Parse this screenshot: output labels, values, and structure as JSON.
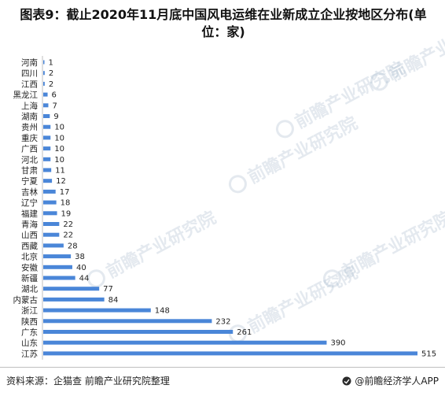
{
  "chart_data": {
    "type": "bar",
    "orientation": "horizontal",
    "title": "图表9：截止2020年11月底中国风电运维在业新成立企业按地区分布(单位：家)",
    "categories": [
      "河南",
      "四川",
      "江西",
      "黑龙江",
      "上海",
      "湖南",
      "贵州",
      "重庆",
      "广西",
      "河北",
      "甘肃",
      "宁夏",
      "吉林",
      "辽宁",
      "福建",
      "青海",
      "山西",
      "西藏",
      "北京",
      "安徽",
      "新疆",
      "湖北",
      "内蒙古",
      "浙江",
      "陕西",
      "广东",
      "山东",
      "江苏"
    ],
    "values": [
      1,
      2,
      2,
      6,
      7,
      9,
      10,
      10,
      10,
      10,
      11,
      12,
      17,
      18,
      19,
      22,
      22,
      28,
      38,
      40,
      44,
      77,
      84,
      148,
      232,
      261,
      390,
      515
    ],
    "xlim": [
      0,
      515
    ],
    "grid": false,
    "legend": "none",
    "bar_color": "#4a86d8"
  },
  "footer": {
    "source": "资料来源：企猫查 前瞻产业研究院整理",
    "brand": "@前瞻经济学人APP"
  },
  "watermark": {
    "text": "前瞻产业研究院",
    "color": "#9fb4c8"
  }
}
